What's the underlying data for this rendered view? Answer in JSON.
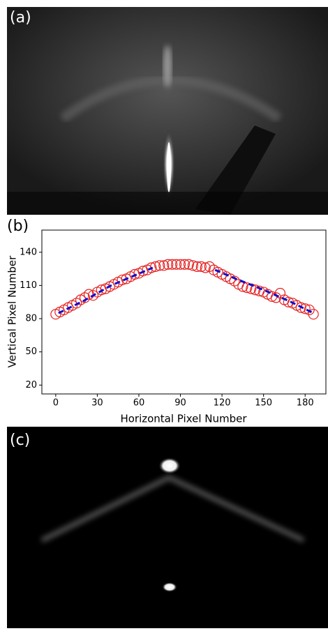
{
  "panel_labels": [
    "(a)",
    "(b)",
    "(c)"
  ],
  "chart_data": {
    "type": "scatter",
    "x_label": "Horizontal Pixel Number",
    "y_label": "Vertical Pixel Number",
    "xlim": [
      -10,
      195
    ],
    "ylim": [
      12,
      160
    ],
    "xticks": [
      0,
      30,
      60,
      90,
      120,
      150,
      180
    ],
    "yticks": [
      20,
      50,
      80,
      110,
      140
    ],
    "series": [
      {
        "marker": "circle",
        "color": "#e52222",
        "x": [
          0,
          3,
          6,
          9,
          12,
          15,
          18,
          21,
          24,
          27,
          30,
          33,
          36,
          39,
          42,
          45,
          48,
          51,
          54,
          57,
          60,
          63,
          66,
          69,
          72,
          75,
          78,
          81,
          84,
          87,
          90,
          93,
          96,
          99,
          102,
          105,
          108,
          111,
          114,
          117,
          120,
          123,
          126,
          129,
          132,
          135,
          138,
          141,
          144,
          147,
          150,
          153,
          156,
          159,
          162,
          165,
          168,
          171,
          174,
          177,
          180,
          183,
          186
        ],
        "values": [
          84,
          86,
          88,
          90,
          92,
          94,
          97,
          99,
          102,
          101,
          104,
          106,
          107,
          109,
          111,
          113,
          115,
          116,
          118,
          120,
          121,
          123,
          124,
          126,
          127,
          128,
          128,
          129,
          129,
          129,
          129,
          129,
          129,
          128,
          127,
          127,
          126,
          127,
          124,
          122,
          120,
          118,
          116,
          114,
          111,
          109,
          108,
          107,
          106,
          105,
          104,
          102,
          100,
          99,
          103,
          97,
          95,
          94,
          92,
          90,
          89,
          88,
          84
        ]
      },
      {
        "line": "dashed",
        "color": "#1010cc",
        "x": [
          2,
          20,
          40,
          55,
          70,
          90,
          115,
          130,
          150,
          170,
          186
        ],
        "values": [
          85,
          96,
          110,
          118,
          126,
          null,
          124,
          116,
          106,
          95,
          85
        ]
      }
    ]
  }
}
